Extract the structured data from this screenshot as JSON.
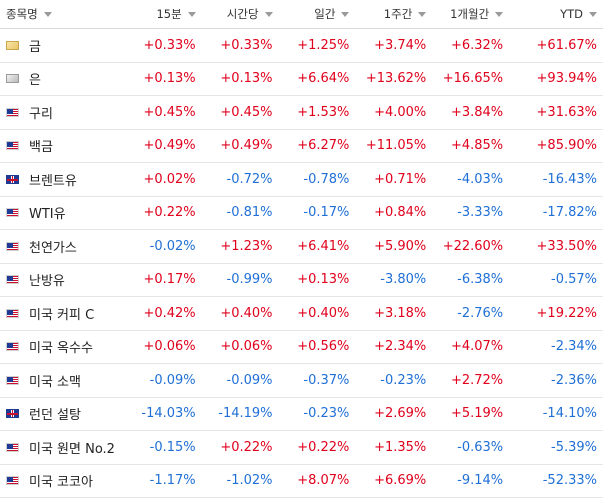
{
  "header": {
    "name": "종목명",
    "columns": [
      "15분",
      "시간당",
      "일간",
      "1주간",
      "1개월간",
      "YTD"
    ]
  },
  "colors": {
    "positive": "#e0001b",
    "negative": "#1f6fd6"
  },
  "rows": [
    {
      "name": "금",
      "flag": "gold-icon",
      "values": [
        "+0.33%",
        "+0.33%",
        "+1.25%",
        "+3.74%",
        "+6.32%",
        "+61.67%"
      ]
    },
    {
      "name": "은",
      "flag": "silver-icon",
      "values": [
        "+0.13%",
        "+0.13%",
        "+6.64%",
        "+13.62%",
        "+16.65%",
        "+93.94%"
      ]
    },
    {
      "name": "구리",
      "flag": "us-flag-icon",
      "values": [
        "+0.45%",
        "+0.45%",
        "+1.53%",
        "+4.00%",
        "+3.84%",
        "+31.63%"
      ]
    },
    {
      "name": "백금",
      "flag": "us-flag-icon",
      "values": [
        "+0.49%",
        "+0.49%",
        "+6.27%",
        "+11.05%",
        "+4.85%",
        "+85.90%"
      ]
    },
    {
      "name": "브렌트유",
      "flag": "uk-flag-icon",
      "values": [
        "+0.02%",
        "-0.72%",
        "-0.78%",
        "+0.71%",
        "-4.03%",
        "-16.43%"
      ]
    },
    {
      "name": "WTI유",
      "flag": "us-flag-icon",
      "values": [
        "+0.22%",
        "-0.81%",
        "-0.17%",
        "+0.84%",
        "-3.33%",
        "-17.82%"
      ]
    },
    {
      "name": "천연가스",
      "flag": "us-flag-icon",
      "values": [
        "-0.02%",
        "+1.23%",
        "+6.41%",
        "+5.90%",
        "+22.60%",
        "+33.50%"
      ]
    },
    {
      "name": "난방유",
      "flag": "us-flag-icon",
      "values": [
        "+0.17%",
        "-0.99%",
        "+0.13%",
        "-3.80%",
        "-6.38%",
        "-0.57%"
      ]
    },
    {
      "name": "미국 커피 C",
      "flag": "us-flag-icon",
      "values": [
        "+0.42%",
        "+0.40%",
        "+0.40%",
        "+3.18%",
        "-2.76%",
        "+19.22%"
      ]
    },
    {
      "name": "미국 옥수수",
      "flag": "us-flag-icon",
      "values": [
        "+0.06%",
        "+0.06%",
        "+0.56%",
        "+2.34%",
        "+4.07%",
        "-2.34%"
      ]
    },
    {
      "name": "미국 소맥",
      "flag": "us-flag-icon",
      "values": [
        "-0.09%",
        "-0.09%",
        "-0.37%",
        "-0.23%",
        "+2.72%",
        "-2.36%"
      ]
    },
    {
      "name": "런던 설탕",
      "flag": "uk-flag-icon",
      "values": [
        "-14.03%",
        "-14.19%",
        "-0.23%",
        "+2.69%",
        "+5.19%",
        "-14.10%"
      ]
    },
    {
      "name": "미국 원면 No.2",
      "flag": "us-flag-icon",
      "values": [
        "-0.15%",
        "+0.22%",
        "+0.22%",
        "+1.35%",
        "-0.63%",
        "-5.39%"
      ]
    },
    {
      "name": "미국 코코아",
      "flag": "us-flag-icon",
      "values": [
        "-1.17%",
        "-1.02%",
        "+8.07%",
        "+6.69%",
        "-9.14%",
        "-52.33%"
      ]
    }
  ]
}
